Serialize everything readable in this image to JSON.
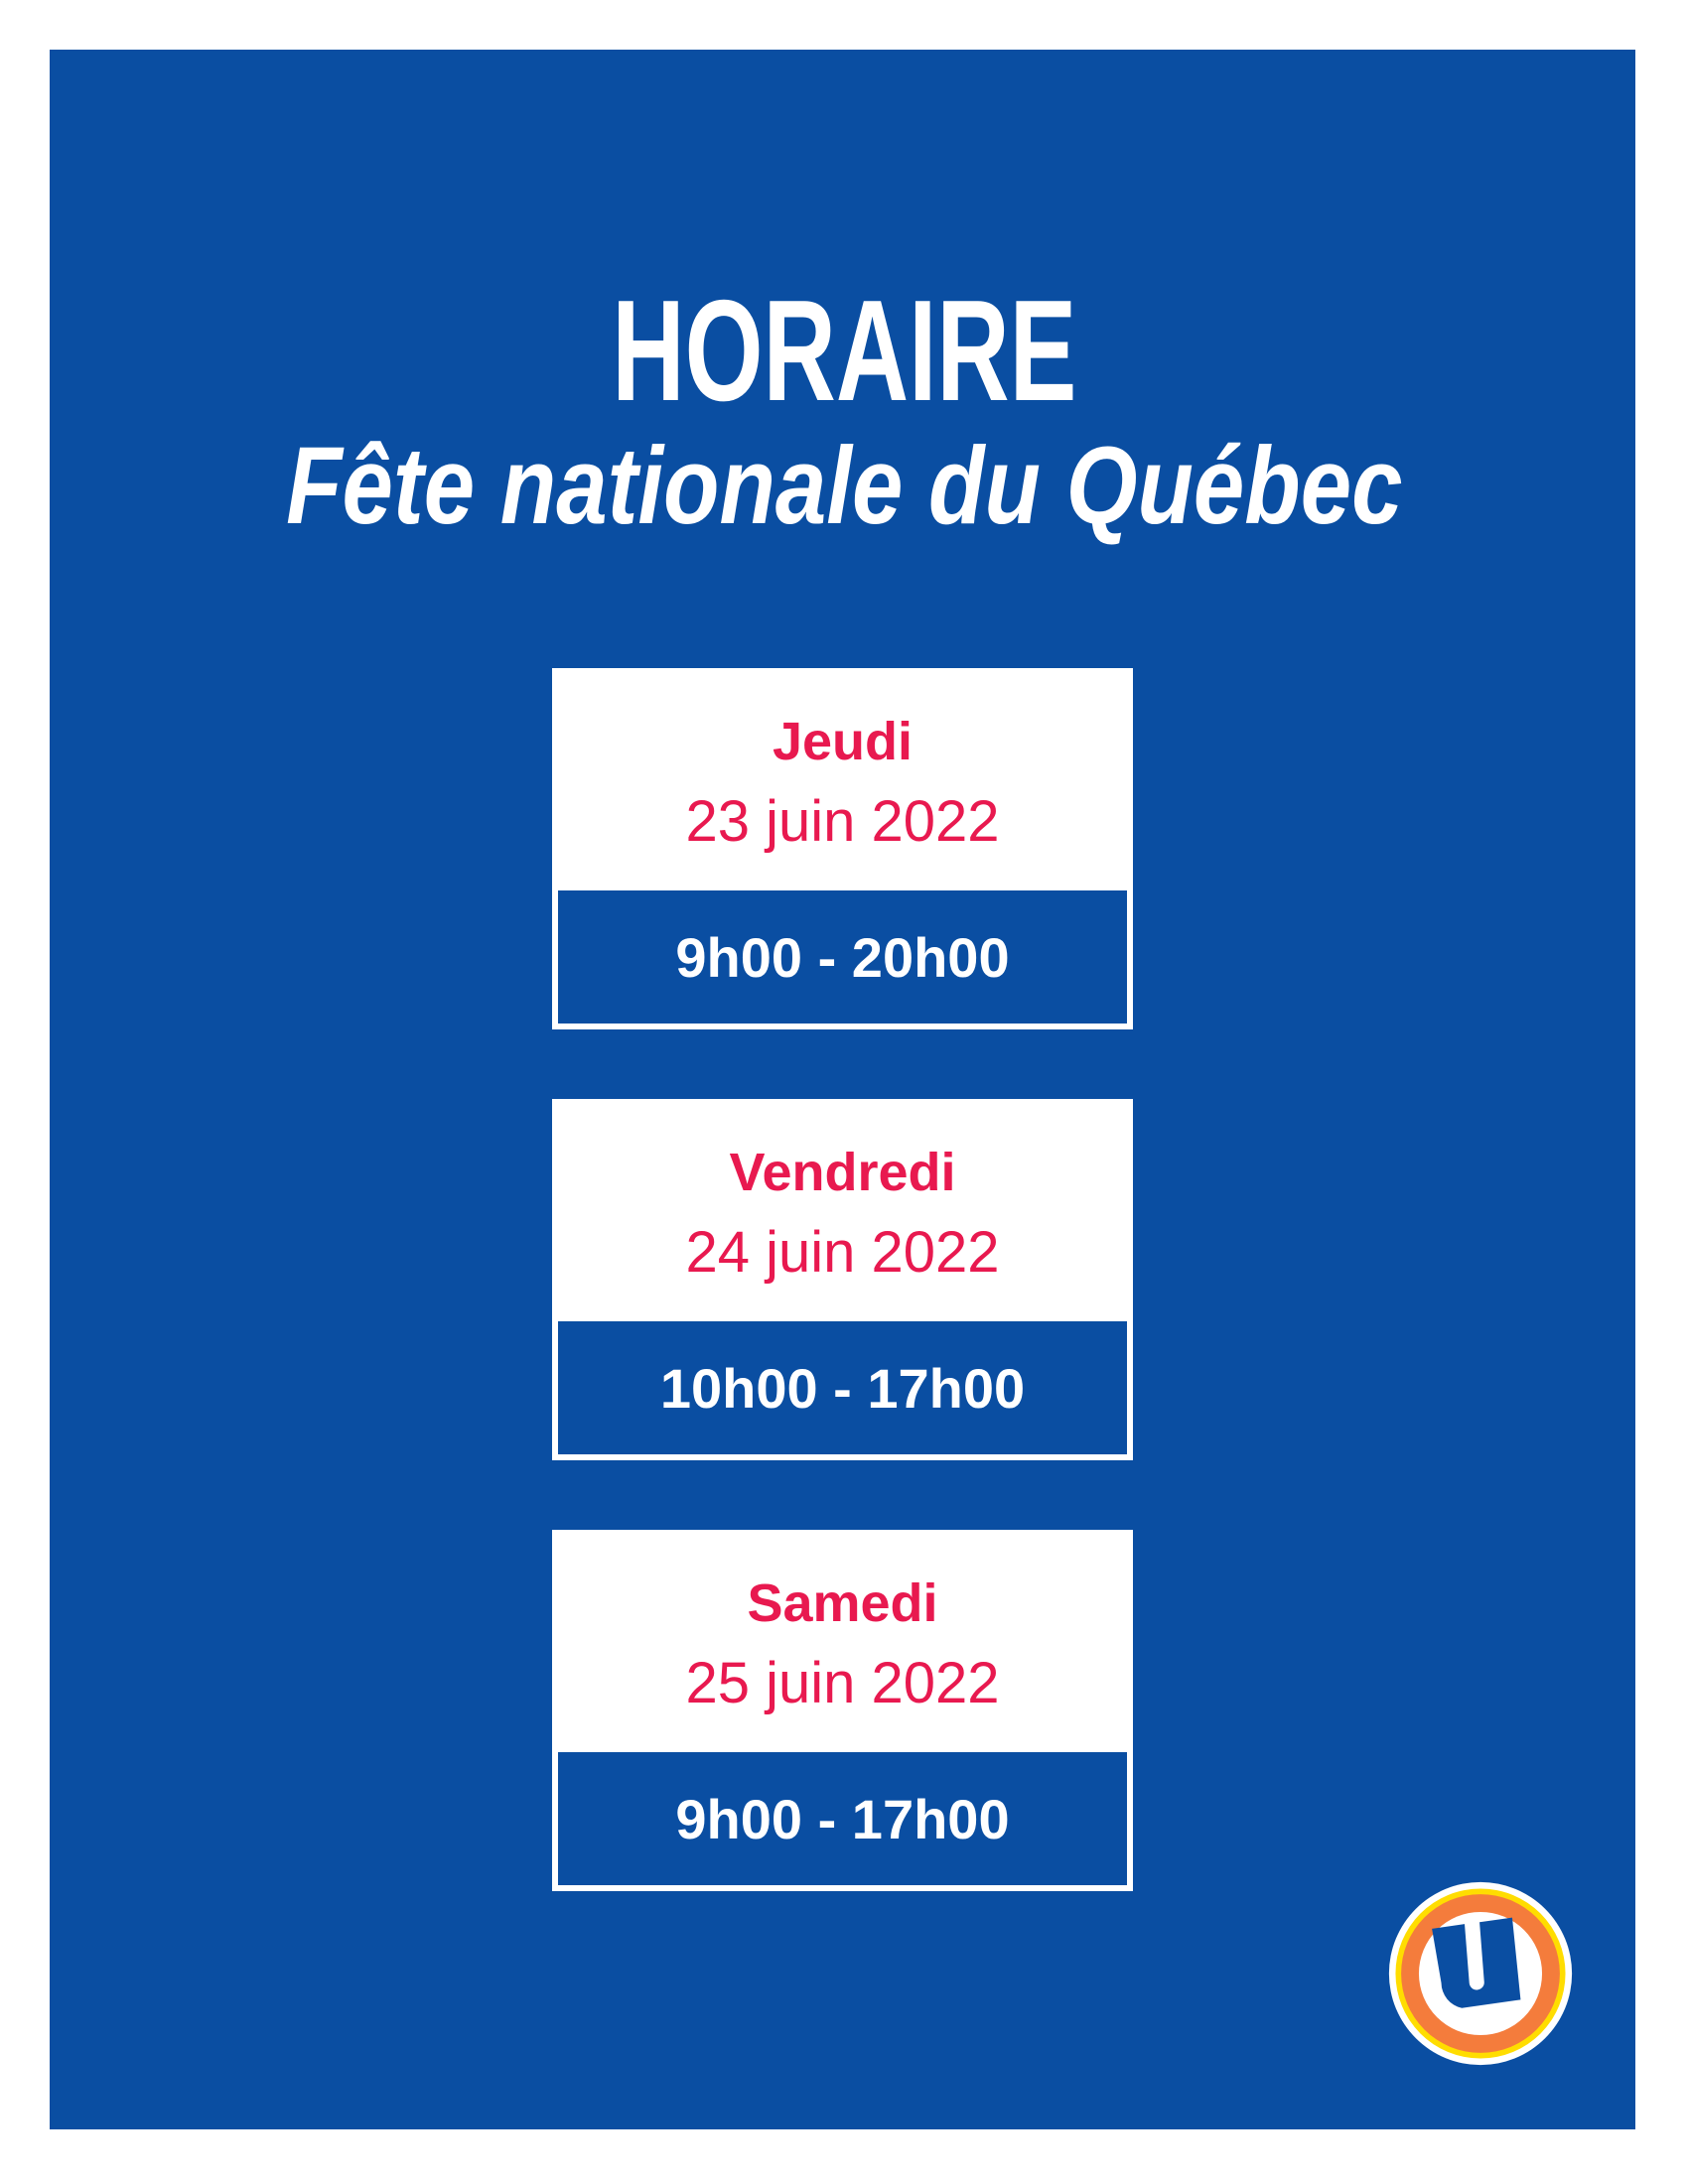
{
  "header": {
    "title": "HORAIRE",
    "subtitle": "Fête nationale du Québec"
  },
  "schedule": [
    {
      "day": "Jeudi",
      "date": "23 juin 2022",
      "hours": "9h00 - 20h00"
    },
    {
      "day": "Vendredi",
      "date": "24 juin 2022",
      "hours": "10h00 - 17h00"
    },
    {
      "day": "Samedi",
      "date": "25 juin 2022",
      "hours": "9h00 - 17h00"
    }
  ],
  "logo": {
    "name": "u-logo",
    "letter": "U"
  },
  "colors": {
    "background": "#0A4EA2",
    "accent": "#E8194F",
    "logo_orange": "#F47C3C",
    "logo_yellow": "#FFDD00"
  }
}
